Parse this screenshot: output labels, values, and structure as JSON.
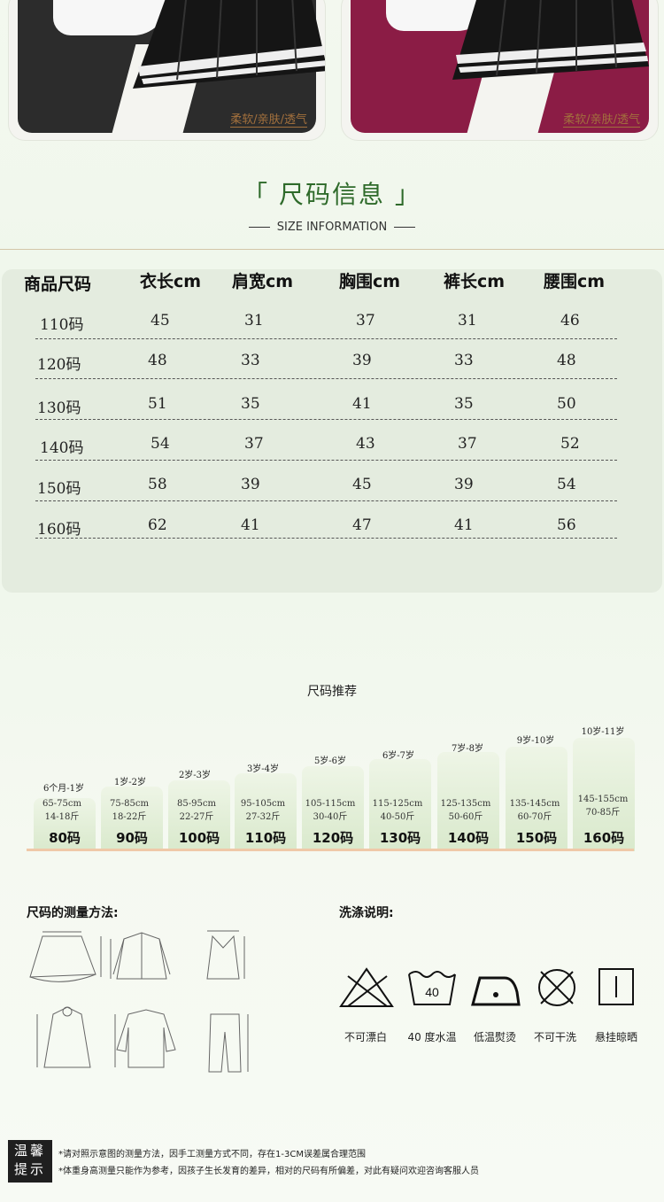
{
  "top_cards": {
    "left": {
      "tagline": "柔软/亲肤/透气",
      "bg": "#2c2c2c"
    },
    "right": {
      "tagline": "柔软/亲肤/透气",
      "bg": "#8b1c45"
    }
  },
  "size_info": {
    "title": "「 尺码信息 」",
    "subtitle": "SIZE INFORMATION",
    "headers": [
      "商品尺码",
      "衣长cm",
      "肩宽cm",
      "胸围cm",
      "裤长cm",
      "腰围cm"
    ],
    "rows": [
      [
        "110码",
        "45",
        "31",
        "37",
        "31",
        "46"
      ],
      [
        "120码",
        "48",
        "33",
        "39",
        "33",
        "48"
      ],
      [
        "130码",
        "51",
        "35",
        "41",
        "35",
        "50"
      ],
      [
        "140码",
        "54",
        "37",
        "43",
        "37",
        "52"
      ],
      [
        "150码",
        "58",
        "39",
        "45",
        "39",
        "54"
      ],
      [
        "160码",
        "62",
        "41",
        "47",
        "41",
        "56"
      ]
    ]
  },
  "recommend": {
    "title": "尺码推荐",
    "items": [
      {
        "age": "6个月-1岁",
        "height": "65-75cm",
        "weight": "14-18斤",
        "size": "80码"
      },
      {
        "age": "1岁-2岁",
        "height": "75-85cm",
        "weight": "18-22斤",
        "size": "90码"
      },
      {
        "age": "2岁-3岁",
        "height": "85-95cm",
        "weight": "22-27斤",
        "size": "100码"
      },
      {
        "age": "3岁-4岁",
        "height": "95-105cm",
        "weight": "27-32斤",
        "size": "110码"
      },
      {
        "age": "5岁-6岁",
        "height": "105-115cm",
        "weight": "30-40斤",
        "size": "120码"
      },
      {
        "age": "6岁-7岁",
        "height": "115-125cm",
        "weight": "40-50斤",
        "size": "130码"
      },
      {
        "age": "7岁-8岁",
        "height": "125-135cm",
        "weight": "50-60斤",
        "size": "140码"
      },
      {
        "age": "9岁-10岁",
        "height": "135-145cm",
        "weight": "60-70斤",
        "size": "150码"
      },
      {
        "age": "10岁-11岁",
        "height": "145-155cm",
        "weight": "70-85斤",
        "size": "160码"
      }
    ]
  },
  "measure": {
    "title": "尺码的测量方法:"
  },
  "washing": {
    "title": "洗涤说明:",
    "items": [
      {
        "icon": "no-bleach-icon",
        "label": "不可漂白"
      },
      {
        "icon": "wash-40-icon",
        "label": "40 度水温",
        "badge": "40"
      },
      {
        "icon": "low-iron-icon",
        "label": "低温熨烫"
      },
      {
        "icon": "no-dryclean-icon",
        "label": "不可干洗"
      },
      {
        "icon": "hang-dry-icon",
        "label": "悬挂晾晒"
      }
    ]
  },
  "tips": {
    "badge_top": "温馨",
    "badge_bottom": "提示",
    "line1": "*请对照示意图的测量方法，因手工测量方式不同，存在1-3CM误差属合理范围",
    "line2": "*体重身高测量只能作为参考，因孩子生长发育的差异，相对的尺码有所偏差，对此有疑问欢迎咨询客服人员"
  }
}
